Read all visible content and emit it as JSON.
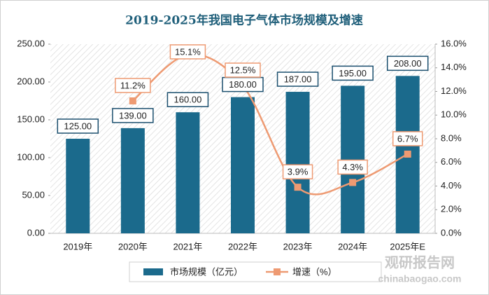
{
  "chart_data": {
    "type": "bar",
    "title": "2019-2025年我国电子气体市场规模及增速",
    "categories": [
      "2019年",
      "2020年",
      "2021年",
      "2022年",
      "2023年",
      "2024年",
      "2025年E"
    ],
    "series": [
      {
        "name": "市场规模（亿元）",
        "type": "bar",
        "color": "#1b6a8c",
        "values": [
          125,
          139,
          160,
          180,
          187,
          195,
          208
        ],
        "value_labels": [
          "125.00",
          "139.00",
          "160.00",
          "180.00",
          "187.00",
          "195.00",
          "208.00"
        ]
      },
      {
        "name": "增速（%）",
        "type": "line",
        "axis": "y2",
        "color": "#ee9a72",
        "values": [
          null,
          11.2,
          15.1,
          12.5,
          3.9,
          4.3,
          6.7
        ],
        "value_labels": [
          null,
          "11.2%",
          "15.1%",
          "12.5%",
          "3.9%",
          "4.3%",
          "6.7%"
        ]
      }
    ],
    "ylim": [
      0,
      250
    ],
    "yticks": [
      {
        "value": 0,
        "label": "0.00"
      },
      {
        "value": 50,
        "label": "50.00"
      },
      {
        "value": 100,
        "label": "100.00"
      },
      {
        "value": 150,
        "label": "150.00"
      },
      {
        "value": 200,
        "label": "200.00"
      },
      {
        "value": 250,
        "label": "250.00"
      }
    ],
    "y2lim": [
      0,
      16
    ],
    "y2ticks": [
      {
        "value": 0,
        "label": "0.0%"
      },
      {
        "value": 2,
        "label": "2.0%"
      },
      {
        "value": 4,
        "label": "4.0%"
      },
      {
        "value": 6,
        "label": "6.0%"
      },
      {
        "value": 8,
        "label": "8.0%"
      },
      {
        "value": 10,
        "label": "10.0%"
      },
      {
        "value": 12,
        "label": "12.0%"
      },
      {
        "value": 14,
        "label": "14.0%"
      },
      {
        "value": 16,
        "label": "16.0%"
      }
    ],
    "legend": "bottom",
    "watermark": [
      "观研报告网",
      "chinabaogao.com"
    ]
  }
}
